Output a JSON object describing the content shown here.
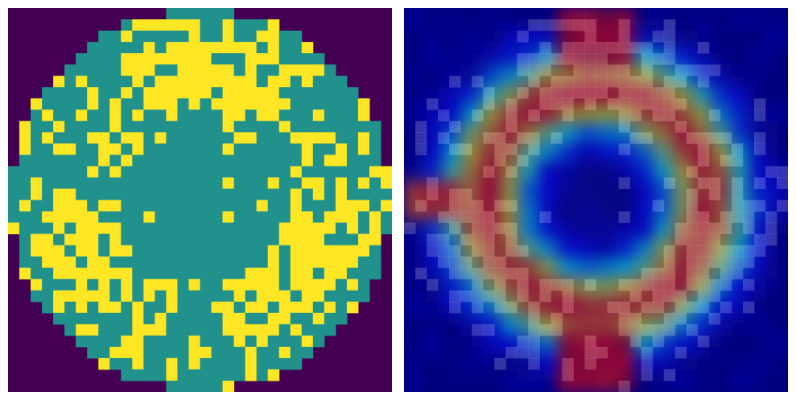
{
  "figure": {
    "panels": [
      {
        "name": "wafer-map",
        "kind": "defect-grid"
      },
      {
        "name": "attention-heatmap",
        "kind": "heatmap-overlay"
      }
    ],
    "grid_size": 34,
    "colors": {
      "background": "#440154",
      "normal_die": "#21918c",
      "defect_die": "#fde725",
      "heatmap_low": "#00007f",
      "heatmap_mid": "#7fff7f",
      "heatmap_high": "#7f0000"
    }
  }
}
